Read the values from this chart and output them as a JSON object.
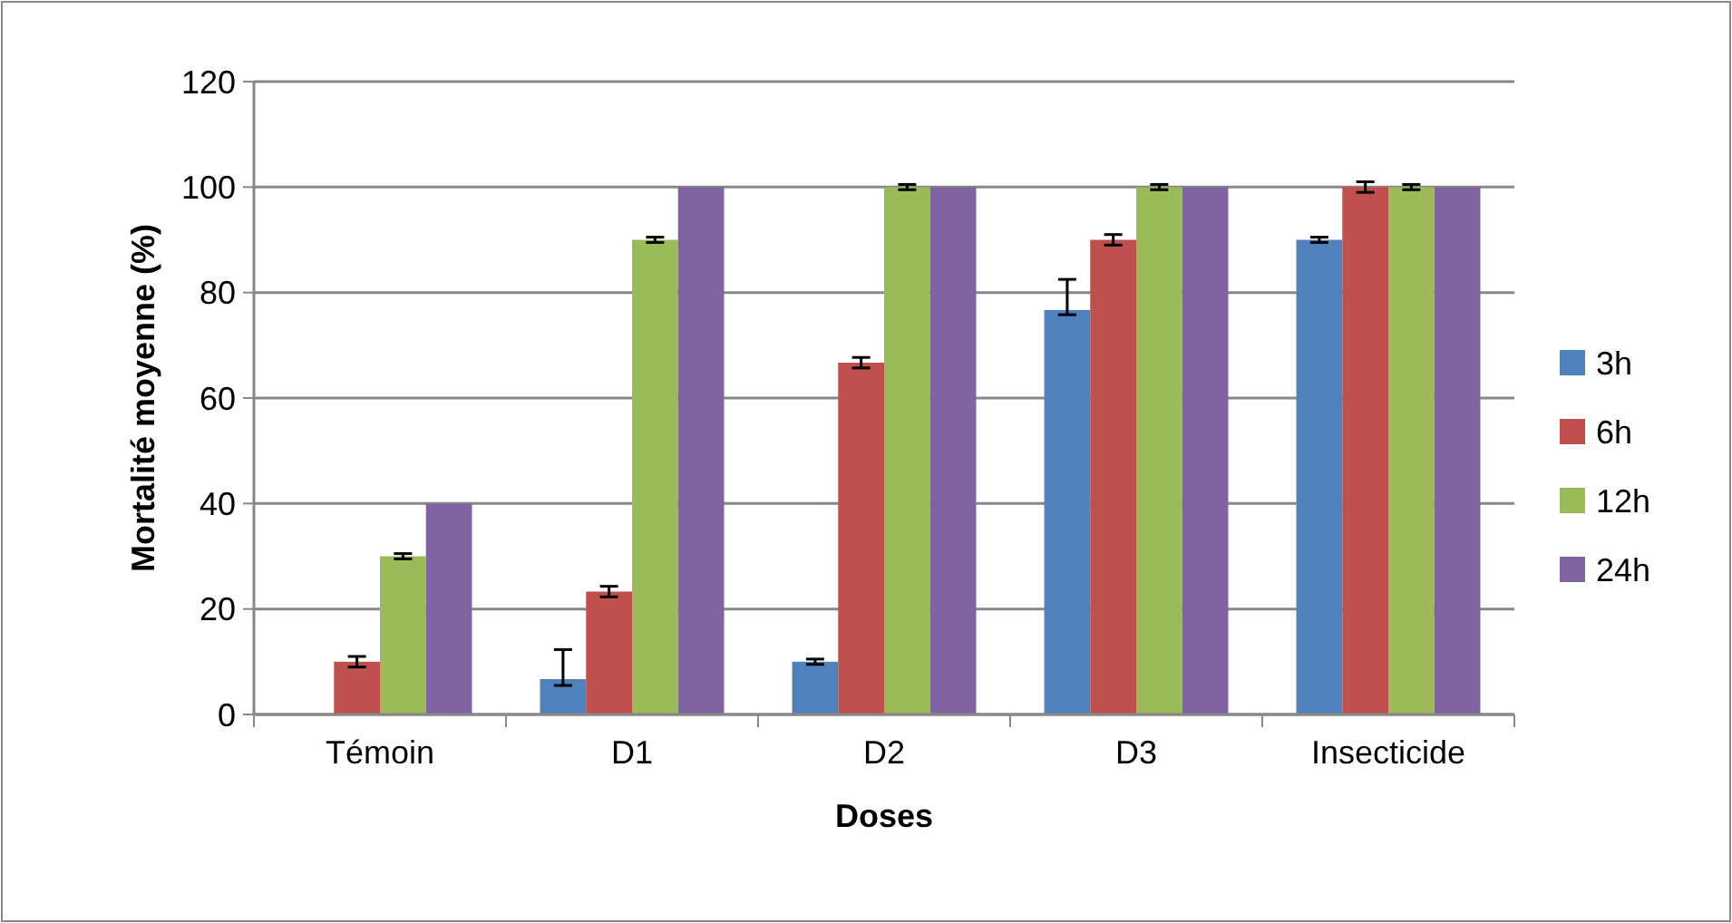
{
  "chart_data": {
    "type": "bar",
    "xlabel": "Doses",
    "ylabel": "Mortalité moyenne (%)",
    "categories": [
      "Témoin",
      "D1",
      "D2",
      "D3",
      "Insecticide"
    ],
    "series": [
      {
        "name": "3h",
        "color": "#4f81bd",
        "values": [
          0,
          6.7,
          10,
          76.7,
          90
        ],
        "errors": [
          null,
          [
            5.5,
            12.3
          ],
          0.5,
          [
            75.8,
            82.5
          ],
          0.5
        ]
      },
      {
        "name": "6h",
        "color": "#c0504d",
        "values": [
          10,
          23.3,
          66.7,
          90,
          100
        ],
        "errors": [
          1,
          1,
          1,
          1,
          1
        ]
      },
      {
        "name": "12h",
        "color": "#9bbb59",
        "values": [
          30,
          90,
          100,
          100,
          100
        ],
        "errors": [
          0.5,
          0.5,
          0.5,
          0.5,
          0.5
        ]
      },
      {
        "name": "24h",
        "color": "#8064a2",
        "values": [
          40,
          100,
          100,
          100,
          100
        ]
      }
    ],
    "ylim": [
      0,
      120
    ],
    "yticks": [
      0,
      20,
      40,
      60,
      80,
      100,
      120
    ],
    "grid": "y",
    "legend": "right"
  }
}
